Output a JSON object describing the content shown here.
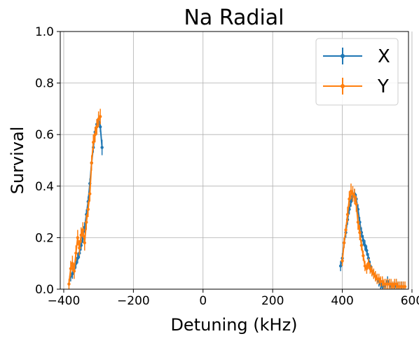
{
  "chart_data": {
    "type": "line",
    "title": "Na Radial",
    "xlabel": "Detuning (kHz)",
    "ylabel": "Survival",
    "xlim": [
      -410,
      590
    ],
    "ylim": [
      0,
      1.0
    ],
    "xticks": [
      -400,
      -200,
      0,
      200,
      400,
      600
    ],
    "xtick_labels": [
      "−400",
      "−200",
      "0",
      "200",
      "400",
      "600"
    ],
    "yticks": [
      0.0,
      0.2,
      0.4,
      0.6,
      0.8,
      1.0
    ],
    "ytick_labels": [
      "0.0",
      "0.2",
      "0.4",
      "0.6",
      "0.8",
      "1.0"
    ],
    "grid": true,
    "legend_position": "top-right",
    "series": [
      {
        "name": "X",
        "color": "#1f77b4",
        "segments": [
          {
            "x": [
              -380,
              -375,
              -370,
              -365,
              -360,
              -355,
              -350,
              -345,
              -340,
              -335,
              -330,
              -325,
              -320,
              -315,
              -310,
              -305,
              -300,
              -295,
              -290
            ],
            "y": [
              0.05,
              0.06,
              0.08,
              0.1,
              0.12,
              0.14,
              0.17,
              0.2,
              0.24,
              0.29,
              0.34,
              0.41,
              0.49,
              0.55,
              0.61,
              0.64,
              0.66,
              0.63,
              0.55
            ],
            "err": [
              0.02,
              0.02,
              0.02,
              0.02,
              0.02,
              0.02,
              0.02,
              0.02,
              0.02,
              0.02,
              0.02,
              0.02,
              0.02,
              0.02,
              0.02,
              0.02,
              0.02,
              0.02,
              0.03
            ]
          },
          {
            "x": [
              395,
              400,
              405,
              410,
              415,
              420,
              425,
              430,
              435,
              440,
              445,
              450,
              455,
              460,
              465,
              470,
              475,
              480,
              485,
              490,
              495,
              500,
              505,
              510,
              515,
              520,
              525,
              530,
              535,
              540,
              545,
              550,
              555,
              560,
              565,
              570,
              575
            ],
            "y": [
              0.09,
              0.12,
              0.18,
              0.22,
              0.27,
              0.31,
              0.34,
              0.36,
              0.37,
              0.35,
              0.31,
              0.26,
              0.22,
              0.19,
              0.17,
              0.15,
              0.12,
              0.09,
              0.07,
              0.06,
              0.05,
              0.04,
              0.03,
              0.02,
              0.01,
              0.01,
              0.02,
              0.03,
              0.02,
              0.01,
              0.01,
              0.01,
              0.02,
              0.01,
              0.01,
              0.01,
              0.01
            ],
            "err": [
              0.02,
              0.02,
              0.02,
              0.02,
              0.02,
              0.02,
              0.02,
              0.02,
              0.02,
              0.02,
              0.02,
              0.02,
              0.02,
              0.02,
              0.02,
              0.02,
              0.02,
              0.02,
              0.02,
              0.02,
              0.02,
              0.02,
              0.02,
              0.02,
              0.02,
              0.02,
              0.02,
              0.02,
              0.02,
              0.02,
              0.02,
              0.02,
              0.02,
              0.02,
              0.02,
              0.02,
              0.02
            ]
          }
        ]
      },
      {
        "name": "Y",
        "color": "#ff7f0e",
        "segments": [
          {
            "x": [
              -385,
              -380,
              -375,
              -370,
              -365,
              -360,
              -355,
              -350,
              -345,
              -340,
              -335,
              -330,
              -325,
              -320,
              -315,
              -310,
              -305,
              -300,
              -295
            ],
            "y": [
              0.02,
              0.08,
              0.1,
              0.07,
              0.14,
              0.2,
              0.16,
              0.21,
              0.23,
              0.18,
              0.26,
              0.31,
              0.37,
              0.49,
              0.57,
              0.6,
              0.63,
              0.66,
              0.67
            ],
            "err": [
              0.02,
              0.03,
              0.03,
              0.03,
              0.03,
              0.03,
              0.03,
              0.03,
              0.03,
              0.03,
              0.03,
              0.03,
              0.03,
              0.03,
              0.03,
              0.03,
              0.03,
              0.03,
              0.03
            ]
          },
          {
            "x": [
              400,
              405,
              410,
              415,
              420,
              425,
              430,
              435,
              440,
              445,
              450,
              455,
              460,
              465,
              470,
              475,
              480,
              485,
              490,
              495,
              500,
              505,
              510,
              515,
              520,
              525,
              530,
              535,
              540,
              545,
              550,
              555,
              560,
              565,
              570,
              575,
              580
            ],
            "y": [
              0.11,
              0.18,
              0.23,
              0.29,
              0.35,
              0.38,
              0.37,
              0.36,
              0.33,
              0.26,
              0.22,
              0.17,
              0.13,
              0.09,
              0.08,
              0.1,
              0.08,
              0.07,
              0.06,
              0.05,
              0.04,
              0.04,
              0.03,
              0.03,
              0.02,
              0.02,
              0.02,
              0.02,
              0.02,
              0.01,
              0.02,
              0.02,
              0.01,
              0.01,
              0.01,
              0.01,
              0.01
            ],
            "err": [
              0.02,
              0.02,
              0.02,
              0.03,
              0.03,
              0.03,
              0.03,
              0.03,
              0.03,
              0.03,
              0.03,
              0.02,
              0.02,
              0.02,
              0.02,
              0.02,
              0.02,
              0.02,
              0.02,
              0.02,
              0.02,
              0.02,
              0.02,
              0.02,
              0.02,
              0.02,
              0.02,
              0.02,
              0.02,
              0.02,
              0.02,
              0.02,
              0.02,
              0.02,
              0.02,
              0.02,
              0.02
            ]
          }
        ]
      }
    ]
  }
}
